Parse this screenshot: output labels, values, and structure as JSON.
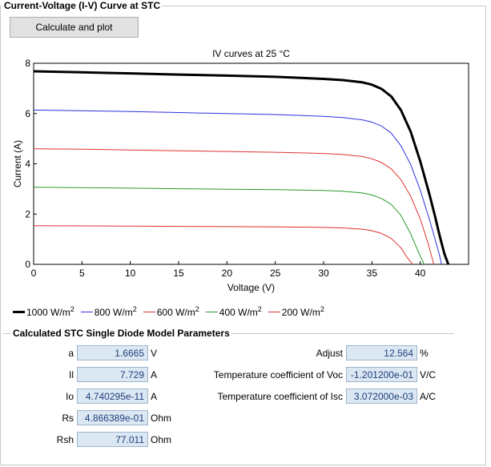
{
  "window": {
    "group_title": "Current-Voltage (I-V) Curve at STC"
  },
  "toolbar": {
    "calc_label": "Calculate and plot"
  },
  "chart_data": {
    "type": "line",
    "title": "IV curves at 25 °C",
    "xlabel": "Voltage (V)",
    "ylabel": "Current (A)",
    "xlim": [
      0,
      45
    ],
    "ylim": [
      0,
      8
    ],
    "xticks": [
      0,
      5,
      10,
      15,
      20,
      25,
      30,
      35,
      40
    ],
    "yticks": [
      0,
      2,
      4,
      6,
      8
    ],
    "grid": false,
    "legend_position": "bottom",
    "series": [
      {
        "name": "1000 W/m2",
        "color": "#000000",
        "width": 3,
        "x": [
          0,
          5,
          10,
          15,
          20,
          25,
          30,
          32,
          34,
          35,
          36,
          37,
          38,
          39,
          40,
          41,
          41.5,
          42,
          42.5,
          42.9
        ],
        "y": [
          7.68,
          7.64,
          7.6,
          7.55,
          7.51,
          7.46,
          7.38,
          7.33,
          7.24,
          7.15,
          6.98,
          6.68,
          6.14,
          5.29,
          4.1,
          2.72,
          1.95,
          1.15,
          0.42,
          0
        ]
      },
      {
        "name": "800 W/m2",
        "color": "#3030e0",
        "width": 1,
        "x": [
          0,
          5,
          10,
          15,
          20,
          25,
          30,
          32,
          34,
          35,
          36,
          37,
          38,
          39,
          40,
          41,
          41.5,
          42,
          42.2
        ],
        "y": [
          6.14,
          6.11,
          6.08,
          6.04,
          6.0,
          5.96,
          5.89,
          5.84,
          5.75,
          5.66,
          5.5,
          5.22,
          4.72,
          3.98,
          2.95,
          1.72,
          1.05,
          0.35,
          0
        ]
      },
      {
        "name": "600 W/m2",
        "color": "#e03030",
        "width": 1,
        "x": [
          0,
          5,
          10,
          15,
          20,
          25,
          30,
          32,
          34,
          35,
          36,
          37,
          38,
          39,
          40,
          40.8,
          41.4
        ],
        "y": [
          4.6,
          4.58,
          4.55,
          4.52,
          4.49,
          4.46,
          4.41,
          4.37,
          4.29,
          4.2,
          4.05,
          3.8,
          3.37,
          2.72,
          1.8,
          0.85,
          0
        ]
      },
      {
        "name": "400 W/m2",
        "color": "#2a9a2a",
        "width": 1,
        "x": [
          0,
          5,
          10,
          15,
          20,
          25,
          30,
          32,
          34,
          35,
          36,
          37,
          38,
          39,
          39.8,
          40.4
        ],
        "y": [
          3.07,
          3.05,
          3.03,
          3.01,
          2.99,
          2.97,
          2.94,
          2.91,
          2.84,
          2.76,
          2.62,
          2.38,
          1.95,
          1.22,
          0.5,
          0
        ]
      },
      {
        "name": "200 W/m2",
        "color": "#e03030",
        "width": 1,
        "x": [
          0,
          5,
          10,
          15,
          20,
          25,
          30,
          32,
          34,
          35,
          36,
          37,
          38,
          38.6,
          39.2
        ],
        "y": [
          1.54,
          1.53,
          1.52,
          1.51,
          1.5,
          1.49,
          1.47,
          1.45,
          1.4,
          1.34,
          1.23,
          1.03,
          0.66,
          0.3,
          0
        ]
      }
    ]
  },
  "legend": {
    "items": [
      {
        "label": "1000 W/m",
        "sup": "2",
        "color": "#000000",
        "thick": true
      },
      {
        "label": "800 W/m",
        "sup": "2",
        "color": "#3030e0",
        "thick": false
      },
      {
        "label": "600 W/m",
        "sup": "2",
        "color": "#e03030",
        "thick": false
      },
      {
        "label": "400 W/m",
        "sup": "2",
        "color": "#2a9a2a",
        "thick": false
      },
      {
        "label": "200 W/m",
        "sup": "2",
        "color": "#e03030",
        "thick": false
      }
    ]
  },
  "params": {
    "title": "Calculated STC Single Diode Model Parameters",
    "a": {
      "label": "a",
      "value": "1.6665",
      "unit": "V"
    },
    "il": {
      "label": "Il",
      "value": "7.729",
      "unit": "A"
    },
    "io": {
      "label": "Io",
      "value": "4.740295e-11",
      "unit": "A"
    },
    "rs": {
      "label": "Rs",
      "value": "4.866389e-01",
      "unit": "Ohm"
    },
    "rsh": {
      "label": "Rsh",
      "value": "77.011",
      "unit": "Ohm"
    },
    "adjust": {
      "label": "Adjust",
      "value": "12.564",
      "unit": "%"
    },
    "tcvoc": {
      "label": "Temperature coefficient of Voc",
      "value": "-1.201200e-01",
      "unit": "V/C"
    },
    "tcisc": {
      "label": "Temperature coefficient of Isc",
      "value": "3.072000e-03",
      "unit": "A/C"
    }
  }
}
